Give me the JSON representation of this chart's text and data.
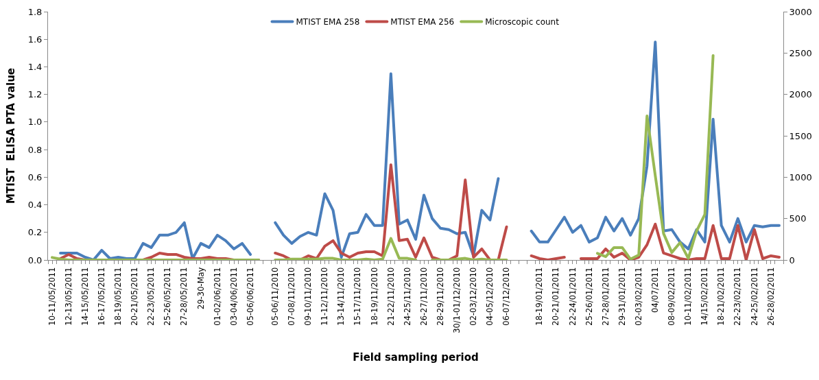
{
  "chart_data": {
    "type": "line",
    "xlabel": "Field sampling period",
    "ylabel": "MTIST  ELISA PTA value",
    "categories": [
      "10-11/05/2011",
      null,
      "12-13/05/2011",
      null,
      "14-15/05/2011",
      null,
      "16-17/05/2011",
      null,
      "18-19/05/2011",
      null,
      "20-21/05/2011",
      null,
      "22-23/05/2011",
      null,
      "25-26/05/2011",
      null,
      "27-28/05/2011",
      null,
      "29-30-May",
      null,
      "01-02/06/2011",
      null,
      "03-04/06/2011",
      null,
      "05-06/06/2011",
      null,
      null,
      "05-06/11/2010",
      null,
      "07-08/11/2010",
      null,
      "09-10/11/2010",
      null,
      "11-12/11/2010",
      null,
      "13-14/11/2010",
      null,
      "15-17/11/2010",
      null,
      "18-19/11/2010",
      null,
      "21-22/11/2010",
      null,
      "24-25/11/2010",
      null,
      "26-27/11/2010",
      null,
      "28-29/11/2010",
      null,
      "30/1-01/12/2010",
      null,
      "02-03/12/2010",
      null,
      "04-05/12/2010",
      null,
      "06-07/12/2010",
      null,
      null,
      null,
      "18-19/01/2011",
      null,
      "20-21/01/2011",
      null,
      "22-24/01/2011",
      null,
      "25-26/01/2011",
      null,
      "27-28/01/2011",
      null,
      "29-31/01/2011",
      null,
      "02-03/02/2011",
      null,
      "04/07/2011",
      null,
      "08-09/02/2011",
      null,
      "10-11/02/2011",
      null,
      "14/15/02/2011",
      null,
      "18-21/02/2011",
      null,
      "22-23/02/2011",
      null,
      "24-25/02/2011",
      null,
      "26-28/02/2011",
      null
    ],
    "series": [
      {
        "name": "MTIST EMA 258",
        "color": "#4a7ebb",
        "values": [
          null,
          0.05,
          0.05,
          0.05,
          0.02,
          0,
          0.07,
          0.01,
          0.02,
          0.01,
          0.01,
          0.12,
          0.09,
          0.18,
          0.18,
          0.2,
          0.27,
          0.01,
          0.12,
          0.09,
          0.18,
          0.14,
          0.08,
          0.12,
          0.04,
          null,
          null,
          0.27,
          0.18,
          0.12,
          0.17,
          0.2,
          0.18,
          0.48,
          0.36,
          0.02,
          0.19,
          0.2,
          0.33,
          0.25,
          0.25,
          1.35,
          0.26,
          0.29,
          0.15,
          0.47,
          0.3,
          0.23,
          0.22,
          0.19,
          0.2,
          0.03,
          0.36,
          0.29,
          0.59,
          null,
          null,
          null,
          0.21,
          0.13,
          0.13,
          0.22,
          0.31,
          0.2,
          0.25,
          0.13,
          0.16,
          0.31,
          0.21,
          0.3,
          0.18,
          0.3,
          0.68,
          1.58,
          0.21,
          0.22,
          0.13,
          0.08,
          0.22,
          0.13,
          1.02,
          0.25,
          0.13,
          0.3,
          0.13,
          0.25,
          0.24,
          0.25,
          0.25
        ]
      },
      {
        "name": "MTIST EMA 256",
        "color": "#be4b48",
        "values": [
          null,
          0.01,
          0.04,
          0.01,
          0,
          0,
          0,
          0,
          0,
          0,
          0,
          0,
          0.02,
          0.05,
          0.04,
          0.04,
          0.02,
          0.01,
          0.01,
          0.02,
          0.01,
          0.01,
          0,
          0,
          0,
          0,
          null,
          0.05,
          0.03,
          0,
          0,
          0.03,
          0.01,
          0.1,
          0.14,
          0.05,
          0.02,
          0.05,
          0.06,
          0.06,
          0.03,
          0.69,
          0.14,
          0.15,
          0.02,
          0.16,
          0.02,
          0,
          0,
          0.03,
          0.58,
          0.02,
          0.08,
          0,
          0,
          0.24,
          null,
          null,
          0.03,
          0.01,
          0,
          0.01,
          0.02,
          null,
          0.01,
          0.01,
          0.01,
          0.08,
          0.02,
          0.05,
          0,
          0.02,
          0.11,
          0.26,
          0.05,
          0.03,
          0.01,
          0,
          0.01,
          0.01,
          0.25,
          0.01,
          0.01,
          0.25,
          0,
          0.22,
          0.01,
          0.03,
          0.02
        ]
      },
      {
        "name": "Microscopic count",
        "color": "#98b954",
        "axis": "y2",
        "values": [
          30,
          10,
          0,
          0,
          0,
          0,
          0,
          0,
          0,
          0,
          0,
          0,
          0,
          0,
          0,
          0,
          0,
          0,
          0,
          0,
          0,
          0,
          0,
          0,
          0,
          0,
          null,
          0,
          0,
          10,
          10,
          10,
          10,
          20,
          20,
          0,
          0,
          0,
          10,
          0,
          10,
          260,
          20,
          20,
          0,
          null,
          0,
          0,
          0,
          10,
          20,
          0,
          10,
          0,
          0,
          0,
          null,
          null,
          null,
          null,
          null,
          null,
          null,
          null,
          null,
          null,
          80,
          40,
          150,
          150,
          10,
          60,
          1740,
          1020,
          320,
          90,
          210,
          20,
          350,
          550,
          2470,
          null,
          null,
          null,
          null,
          null,
          null,
          null,
          null
        ]
      }
    ],
    "ylim": [
      0,
      1.8
    ],
    "yticks": [
      {
        "value": 0,
        "label": "0.0"
      },
      0.2,
      0.4,
      0.6,
      0.8,
      {
        "value": 1,
        "label": "1.0"
      },
      1.2,
      1.4,
      1.6,
      1.8
    ],
    "y2lim": [
      0,
      3000
    ],
    "y2ticks": [
      0,
      500,
      1000,
      1500,
      2000,
      2500,
      3000
    ],
    "legend": "top",
    "marker": "none",
    "line_style": "solid"
  }
}
